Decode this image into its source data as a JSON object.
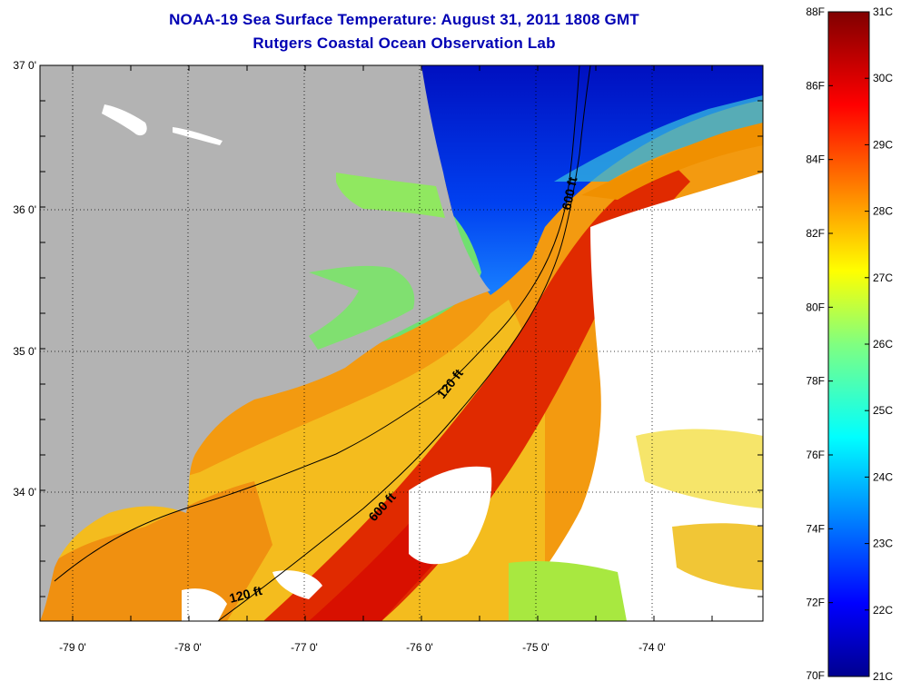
{
  "header": {
    "title": "NOAA-19 Sea Surface Temperature:  August 31, 2011 1808 GMT",
    "subtitle": "Rutgers Coastal Ocean Observation Lab"
  },
  "map": {
    "lat_labels": [
      "37 0'",
      "36 0'",
      "35 0'",
      "34 0'"
    ],
    "lon_labels": [
      "-79 0'",
      "-78 0'",
      "-77 0'",
      "-76 0'",
      "-75 0'",
      "-74 0'"
    ],
    "contours": [
      {
        "label": "600 ft"
      },
      {
        "label": "120 ft"
      },
      {
        "label": "600 ft"
      },
      {
        "label": "120 ft"
      }
    ],
    "colors": {
      "land": "#b3b3b3",
      "cloud": "#ffffff",
      "cold": "#0020d8",
      "warm": "#f07000",
      "hot": "#e01000"
    }
  },
  "colorbar": {
    "fahrenheit_labels": [
      "88F",
      "86F",
      "84F",
      "82F",
      "80F",
      "78F",
      "76F",
      "74F",
      "72F",
      "70F"
    ],
    "celsius_labels": [
      "31C",
      "30C",
      "29C",
      "28C",
      "27C",
      "26C",
      "25C",
      "24C",
      "23C",
      "22C",
      "21C"
    ]
  }
}
